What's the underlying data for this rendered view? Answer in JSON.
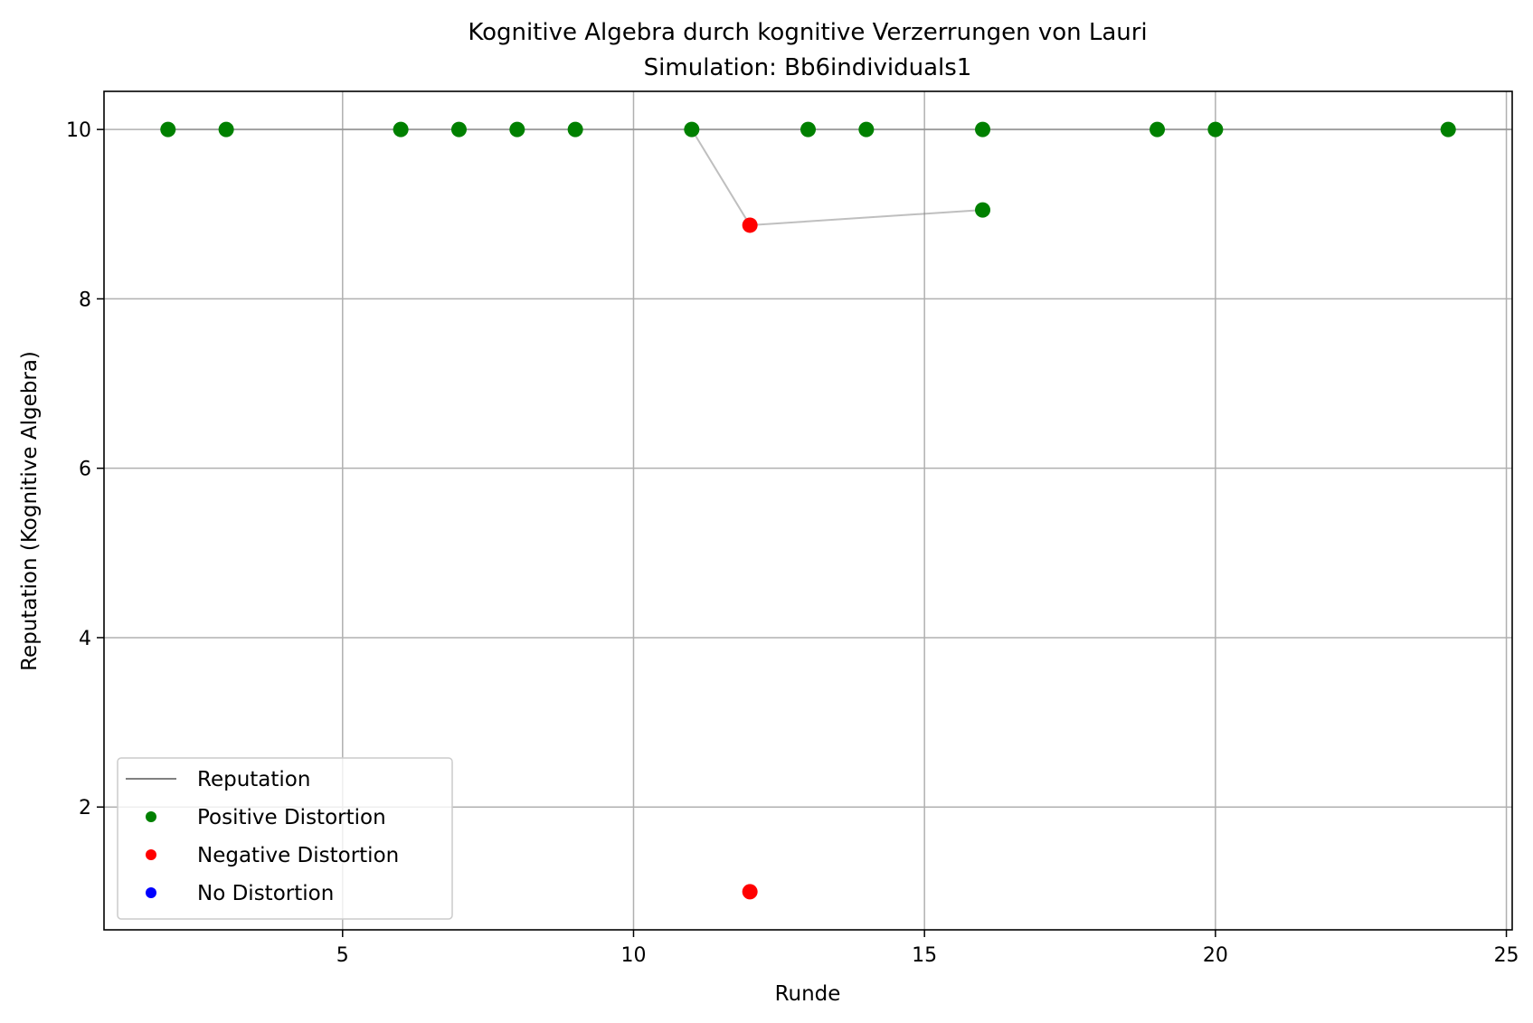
{
  "chart_data": {
    "type": "line",
    "title": "Kognitive Algebra durch kognitive Verzerrungen von Lauri",
    "subtitle": "Simulation: Bb6individuals1",
    "xlabel": "Runde",
    "ylabel": "Reputation (Kognitive Algebra)",
    "xlim": [
      0.9,
      25.1
    ],
    "ylim": [
      0.55,
      10.45
    ],
    "xticks": [
      5,
      10,
      15,
      20,
      25
    ],
    "yticks": [
      2,
      4,
      6,
      8,
      10
    ],
    "grid": true,
    "legend_position": "lower-left",
    "colors": {
      "reputation": "#808080",
      "positive": "#008000",
      "negative": "#ff0000",
      "none": "#0000ff",
      "grid": "#b0b0b0"
    },
    "legend": [
      "Reputation",
      "Positive Distortion",
      "Negative Distortion",
      "No Distortion"
    ],
    "series": [
      {
        "name": "Reputation",
        "type": "line",
        "x": [
          2,
          3,
          6,
          7,
          8,
          9,
          11,
          13,
          14,
          16,
          19,
          20,
          24,
          25.1
        ],
        "y": [
          10,
          10,
          10,
          10,
          10,
          10,
          10,
          10,
          10,
          10,
          10,
          10,
          10,
          10
        ]
      },
      {
        "name": "Reputation",
        "type": "line",
        "x": [
          11,
          12,
          16
        ],
        "y": [
          10,
          8.87,
          9.05
        ]
      },
      {
        "name": "Positive Distortion",
        "type": "scatter",
        "x": [
          2,
          3,
          6,
          7,
          8,
          9,
          11,
          13,
          14,
          16,
          19,
          20,
          24,
          16
        ],
        "y": [
          10,
          10,
          10,
          10,
          10,
          10,
          10,
          10,
          10,
          10,
          10,
          10,
          10,
          9.05
        ]
      },
      {
        "name": "Negative Distortion",
        "type": "scatter",
        "x": [
          12,
          12
        ],
        "y": [
          8.87,
          1.0
        ]
      },
      {
        "name": "No Distortion",
        "type": "scatter",
        "x": [],
        "y": []
      }
    ]
  }
}
